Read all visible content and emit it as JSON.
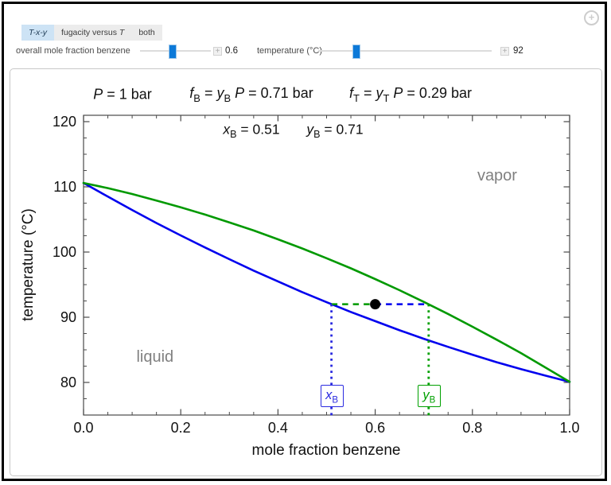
{
  "tabs": {
    "items": [
      {
        "label": "T-x-y",
        "selected": true,
        "italic": true
      },
      {
        "label": "fugacity versus T",
        "selected": false
      },
      {
        "label": "both",
        "selected": false
      }
    ]
  },
  "controls": {
    "mole_fraction": {
      "label": "overall mole fraction benzene",
      "value": "0.6"
    },
    "temperature": {
      "label": "temperature (°C)",
      "value": "92"
    }
  },
  "icons": {
    "plus_circle_glyph": "+",
    "stepper_plus_glyph": "+"
  },
  "header": {
    "pressure": "P = 1 bar",
    "fugacity_benzene": "f_B = y_B P = 0.71 bar",
    "fugacity_toluene": "f_T = y_T P = 0.29 bar",
    "composition_x": "x_B = 0.51",
    "composition_y": "y_B = 0.71"
  },
  "chart_data": {
    "type": "line",
    "xlabel": "mole fraction benzene",
    "ylabel": "temperature (°C)",
    "xlim": [
      0,
      1
    ],
    "ylim": [
      75,
      121
    ],
    "frame": true,
    "grid": false,
    "legend": "none",
    "pressure_bar": 1,
    "temperature_C": 92,
    "overall_mole_fraction": 0.6,
    "x_B": 0.51,
    "y_B": 0.71,
    "x_ticks": [
      {
        "v": 0,
        "label": "0.0"
      },
      {
        "v": 0.2,
        "label": "0.2"
      },
      {
        "v": 0.4,
        "label": "0.4"
      },
      {
        "v": 0.6,
        "label": "0.6"
      },
      {
        "v": 0.8,
        "label": "0.8"
      },
      {
        "v": 1,
        "label": "1.0"
      }
    ],
    "y_ticks": [
      {
        "v": 80,
        "label": "80"
      },
      {
        "v": 90,
        "label": "90"
      },
      {
        "v": 100,
        "label": "100"
      },
      {
        "v": 110,
        "label": "110"
      },
      {
        "v": 120,
        "label": "120"
      }
    ],
    "x_minor_ticks": [
      0.05,
      0.1,
      0.15,
      0.25,
      0.3,
      0.35,
      0.45,
      0.5,
      0.55,
      0.65,
      0.7,
      0.75,
      0.85,
      0.9,
      0.95
    ],
    "y_minor_ticks": [
      77.5,
      82.5,
      85,
      87.5,
      92.5,
      95,
      97.5,
      102.5,
      105,
      107.5,
      112.5,
      115,
      117.5
    ],
    "x": [
      0,
      0.05,
      0.1,
      0.15,
      0.2,
      0.25,
      0.3,
      0.35,
      0.4,
      0.45,
      0.5,
      0.55,
      0.6,
      0.65,
      0.7,
      0.75,
      0.8,
      0.85,
      0.9,
      0.95,
      1
    ],
    "series": [
      {
        "name": "liquid-bubble-curve",
        "color": "#0000ee",
        "T": [
          110.6,
          108.5,
          106.45,
          104.45,
          102.55,
          100.7,
          98.9,
          97.15,
          95.5,
          93.85,
          92.3,
          90.8,
          89.4,
          88.0,
          86.7,
          85.45,
          84.25,
          83.1,
          82.05,
          81.05,
          80.1
        ]
      },
      {
        "name": "vapor-dew-curve",
        "color": "#009900",
        "T": [
          110.6,
          109.8,
          108.9,
          107.9,
          106.85,
          105.75,
          104.55,
          103.3,
          101.95,
          100.55,
          99.05,
          97.5,
          95.85,
          94.15,
          92.35,
          90.5,
          88.55,
          86.55,
          84.5,
          82.3,
          80.1
        ]
      }
    ],
    "regions": [
      {
        "text": "liquid",
        "x": 0.147,
        "T": 84.0
      },
      {
        "text": "vapor",
        "x": 0.851,
        "T": 111.8
      }
    ],
    "operating_point": {
      "x": 0.6,
      "T": 92
    },
    "tie_line": {
      "T": 92,
      "segments": [
        {
          "x1": 0.51,
          "x2": 0.6,
          "color": "#009900"
        },
        {
          "x1": 0.6,
          "x2": 0.71,
          "color": "#0000ee"
        }
      ]
    },
    "guides": [
      {
        "x": 0.51,
        "color": "#2b2be0",
        "label": "x_B"
      },
      {
        "x": 0.71,
        "color": "#00a000",
        "label": "y_B"
      }
    ]
  }
}
